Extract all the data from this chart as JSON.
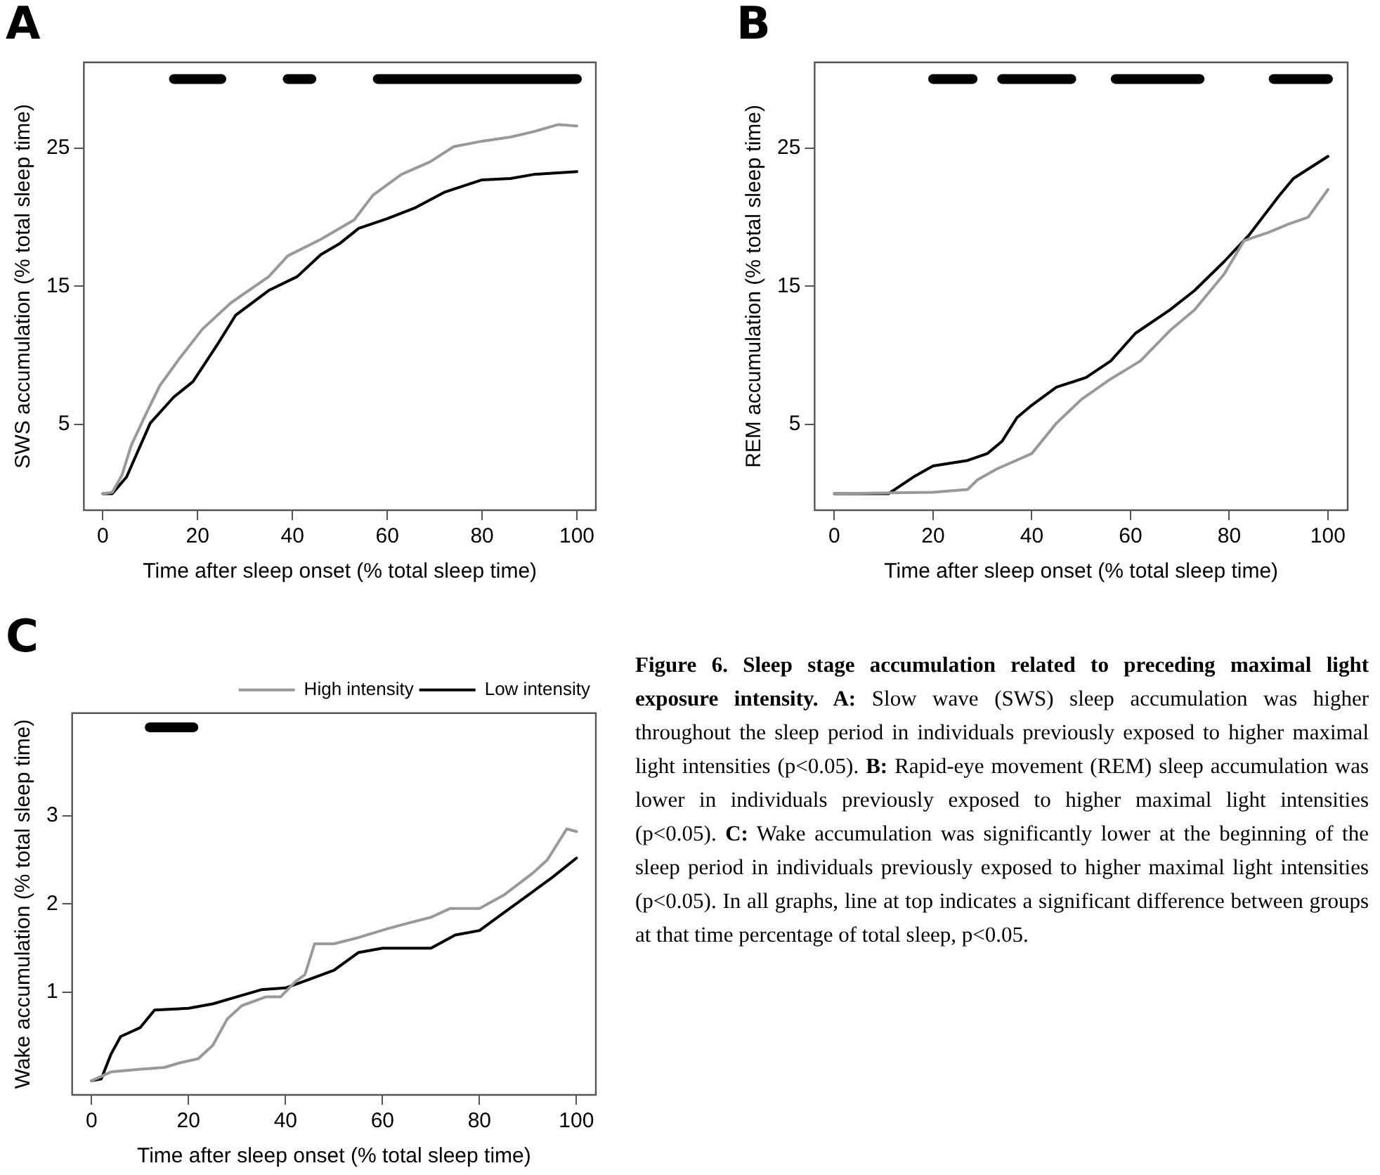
{
  "chart_data": [
    {
      "type": "line",
      "title": "A",
      "xlabel": "Time after sleep onset (% total sleep time)",
      "ylabel": "SWS accumulation (% total sleep time)",
      "xlim": [
        -4,
        104
      ],
      "xticks": [
        0,
        20,
        40,
        60,
        80,
        100
      ],
      "ylim": [
        -1.2,
        31.2
      ],
      "yticks": [
        5,
        15,
        25
      ],
      "grid": false,
      "legend": false,
      "series": [
        {
          "color": "#999999",
          "x": [
            0,
            2,
            4,
            6,
            9,
            12,
            16,
            21,
            27,
            35,
            39,
            46,
            53,
            57,
            63,
            69,
            74,
            80,
            86,
            91,
            96,
            100
          ],
          "values": [
            0,
            0.1,
            1.3,
            3.5,
            5.7,
            7.8,
            9.7,
            11.9,
            13.8,
            15.7,
            17.2,
            18.4,
            19.8,
            21.6,
            23.1,
            24.0,
            25.1,
            25.5,
            25.8,
            26.2,
            26.7,
            26.6
          ]
        },
        {
          "color": "#000000",
          "x": [
            0,
            2,
            5,
            10,
            15,
            19,
            24,
            28,
            35,
            41,
            46,
            50,
            54,
            60,
            66,
            72,
            80,
            86,
            91,
            100
          ],
          "values": [
            0,
            0,
            1.2,
            5.1,
            7.0,
            8.1,
            10.7,
            12.9,
            14.7,
            15.7,
            17.3,
            18.1,
            19.2,
            19.9,
            20.7,
            21.8,
            22.7,
            22.8,
            23.1,
            23.3
          ]
        },
        {
          "color": "#000000",
          "x": [
            15,
            25,
            32,
            39,
            44,
            51,
            58,
            100
          ],
          "values": [
            30,
            30,
            null,
            30,
            30,
            null,
            30,
            30
          ]
        }
      ]
    },
    {
      "type": "line",
      "title": "B",
      "xlabel": "Time after sleep onset (% total sleep time)",
      "ylabel": "REM accumulation (% total sleep time)",
      "xlim": [
        -4,
        104
      ],
      "xticks": [
        0,
        20,
        40,
        60,
        80,
        100
      ],
      "ylim": [
        -1.2,
        31.2
      ],
      "yticks": [
        5,
        15,
        25
      ],
      "grid": false,
      "legend": false,
      "series": [
        {
          "color": "#999999",
          "x": [
            0,
            20,
            27,
            29,
            33,
            40,
            45,
            50,
            56,
            62,
            68,
            73,
            79,
            83,
            88,
            92,
            96,
            100
          ],
          "values": [
            0,
            0.1,
            0.3,
            1.0,
            1.8,
            2.9,
            5.1,
            6.8,
            8.3,
            9.6,
            11.8,
            13.3,
            15.9,
            18.3,
            18.9,
            19.5,
            20.0,
            22.0
          ]
        },
        {
          "color": "#000000",
          "x": [
            0,
            11,
            16,
            20,
            27,
            31,
            34,
            37,
            40,
            45,
            51,
            56,
            61,
            68,
            73,
            79,
            84,
            90,
            93,
            100
          ],
          "values": [
            0,
            0,
            1.2,
            2.0,
            2.4,
            2.9,
            3.8,
            5.5,
            6.4,
            7.7,
            8.4,
            9.6,
            11.6,
            13.3,
            14.7,
            16.8,
            18.7,
            21.5,
            22.8,
            24.4
          ]
        },
        {
          "color": "#000000",
          "x": [
            20,
            28,
            31,
            34,
            48,
            52,
            57,
            74,
            81,
            89,
            100
          ],
          "values": [
            30,
            30,
            null,
            30,
            30,
            null,
            30,
            30,
            null,
            30,
            30
          ]
        }
      ]
    },
    {
      "type": "line",
      "title": "C",
      "xlabel": "Time after sleep onset (% total sleep time)",
      "ylabel": "Wake accumulation (% total sleep time)",
      "xlim": [
        -4,
        104
      ],
      "xticks": [
        0,
        20,
        40,
        60,
        80,
        100
      ],
      "ylim": [
        -0.16,
        4.16
      ],
      "yticks": [
        1,
        2,
        3
      ],
      "grid": false,
      "legend": "top right",
      "series": [
        {
          "name": "High intensity",
          "color": "#999999",
          "x": [
            0,
            4,
            10,
            15,
            18,
            22,
            25,
            28,
            31,
            36,
            39,
            42,
            44,
            46,
            50,
            55,
            61,
            65,
            70,
            74,
            80,
            85,
            91,
            94,
            98,
            100
          ],
          "values": [
            0,
            0.1,
            0.13,
            0.15,
            0.2,
            0.25,
            0.4,
            0.7,
            0.85,
            0.95,
            0.95,
            1.12,
            1.2,
            1.55,
            1.55,
            1.62,
            1.72,
            1.78,
            1.85,
            1.95,
            1.95,
            2.1,
            2.35,
            2.5,
            2.85,
            2.82
          ]
        },
        {
          "name": "Low intensity",
          "color": "#000000",
          "x": [
            0,
            2,
            4,
            6,
            8,
            10,
            13,
            20,
            25,
            30,
            35,
            40,
            45,
            50,
            55,
            60,
            70,
            75,
            80,
            85,
            90,
            95,
            100
          ],
          "values": [
            0,
            0.02,
            0.3,
            0.5,
            0.55,
            0.6,
            0.8,
            0.82,
            0.87,
            0.95,
            1.03,
            1.05,
            1.15,
            1.25,
            1.45,
            1.5,
            1.5,
            1.65,
            1.7,
            1.9,
            2.1,
            2.3,
            2.52
          ]
        },
        {
          "color": "#000000",
          "x": [
            12,
            21
          ],
          "values": [
            4,
            4
          ]
        }
      ],
      "annotations": [
        "Figure 6. Sleep stage accumulation related to preceding maximal light exposure intensity.",
        "A: Slow wave (SWS) sleep accumulation was higher throughout the sleep period in individuals previously exposed to higher maximal light intensities (p<0.05).",
        "B: Rapid-eye movement (REM) sleep accumulation was lower in individuals previously exposed to higher maximal light intensities (p<0.05).",
        "C: Wake accumulation was significantly lower at the beginning of the sleep period in individuals previously exposed to higher maximal light intensities (p<0.05). In all graphs, line at top indicates a significant difference between groups at that time percentage of total sleep, p<0.05."
      ]
    }
  ]
}
